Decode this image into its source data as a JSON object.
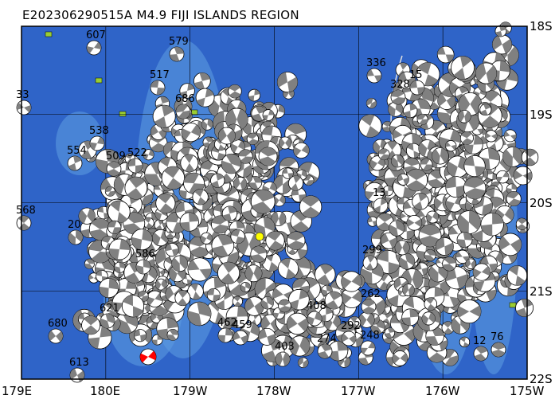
{
  "map": {
    "title": "E202306290515A M4.9 FIJI ISLANDS REGION",
    "lon_ticks": [
      "179E",
      "180E",
      "179W",
      "178W",
      "177W",
      "176W",
      "175W"
    ],
    "lat_ticks": [
      "18S",
      "19S",
      "20S",
      "21S",
      "22S"
    ],
    "colors": {
      "ocean_deep": "#2f64c8",
      "ocean_shallow": "#5b9ae0",
      "land": "#9acd32",
      "frame": "#000000",
      "mechanism_fill": "#808080",
      "target_fill": "#ff0000",
      "epicenter": "#ffff00"
    },
    "event_labels": [
      "607",
      "579",
      "517",
      "33",
      "538",
      "554",
      "509",
      "522",
      "568",
      "20",
      "621",
      "680",
      "613",
      "336",
      "328",
      "13",
      "299",
      "292",
      "274",
      "408",
      "403",
      "462",
      "459",
      "686",
      "586",
      "262",
      "76",
      "12",
      "15",
      "248"
    ]
  }
}
